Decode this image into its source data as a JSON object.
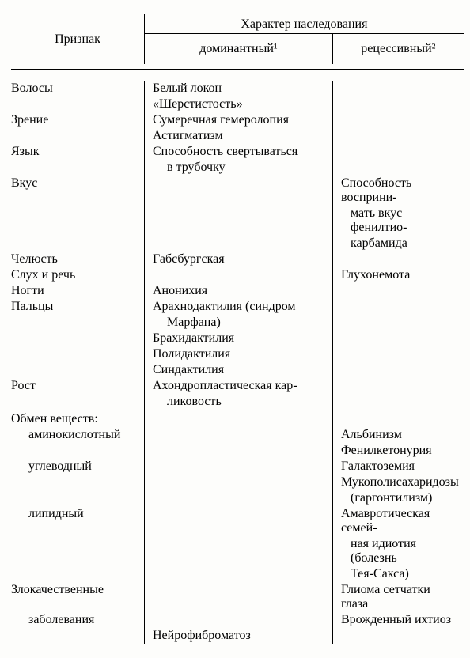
{
  "header": {
    "trait": "Признак",
    "top": "Характер наследования",
    "dominant": "доминантный¹",
    "recessive": "рецессивный²"
  },
  "rows": [
    {
      "c1": "Волосы",
      "c2": "Белый локон",
      "c3": ""
    },
    {
      "c1": "",
      "c2": "«Шерстистость»",
      "c3": ""
    },
    {
      "c1": "Зрение",
      "c2": "Сумеречная гемеролопия",
      "c3": ""
    },
    {
      "c1": "",
      "c2": "Астигматизм",
      "c3": ""
    },
    {
      "c1": "Язык",
      "c2": "Способность свертываться",
      "c3": ""
    },
    {
      "c1": "",
      "c2i": "в трубочку",
      "c3": ""
    },
    {
      "c1": "Вкус",
      "c2": "",
      "c3": "Способность восприни-"
    },
    {
      "c1": "",
      "c2": "",
      "c3i": "мать вкус фенилтио-"
    },
    {
      "c1": "",
      "c2": "",
      "c3i": "карбамида"
    },
    {
      "c1": "Челюсть",
      "c2": "Габсбургская",
      "c3": ""
    },
    {
      "c1": "Слух и речь",
      "c2": "",
      "c3": "Глухонемота"
    },
    {
      "c1": "Ногти",
      "c2": "Анонихия",
      "c3": ""
    },
    {
      "c1": "Пальцы",
      "c2": "Арахнодактилия (синдром",
      "c3": ""
    },
    {
      "c1": "",
      "c2i": "Марфана)",
      "c3": ""
    },
    {
      "c1": "",
      "c2": "Брахидактилия",
      "c3": ""
    },
    {
      "c1": "",
      "c2": "Полидактилия",
      "c3": ""
    },
    {
      "c1": "",
      "c2": "Синдактилия",
      "c3": ""
    },
    {
      "c1": "Рост",
      "c2": "Ахондропластическая кар-",
      "c3": ""
    },
    {
      "c1": "",
      "c2i": "ликовость",
      "c3": ""
    },
    {
      "c1spacer": true
    },
    {
      "c1": "Обмен веществ:",
      "c2": "",
      "c3": ""
    },
    {
      "c1s": "аминокислотный",
      "c2": "",
      "c3": "Альбинизм"
    },
    {
      "c1": "",
      "c2": "",
      "c3": "Фенилкетонурия"
    },
    {
      "c1s": "углеводный",
      "c2": "",
      "c3": "Галактоземия"
    },
    {
      "c1": "",
      "c2": "",
      "c3": "Мукополисахаридозы"
    },
    {
      "c1": "",
      "c2": "",
      "c3i": "(гаргонтилизм)"
    },
    {
      "c1s": "липидный",
      "c2": "",
      "c3": "Амавротическая семей-"
    },
    {
      "c1": "",
      "c2": "",
      "c3i": "ная идиотия (болезнь"
    },
    {
      "c1": "",
      "c2": "",
      "c3i": "Тея-Сакса)"
    },
    {
      "c1": "Злокачественные",
      "c2": "",
      "c3": "Глиома сетчатки глаза"
    },
    {
      "c1s": "заболевания",
      "c2": "",
      "c3": "Врожденный ихтиоз"
    },
    {
      "c1": "",
      "c2": "Нейрофиброматоз",
      "c3": ""
    }
  ]
}
